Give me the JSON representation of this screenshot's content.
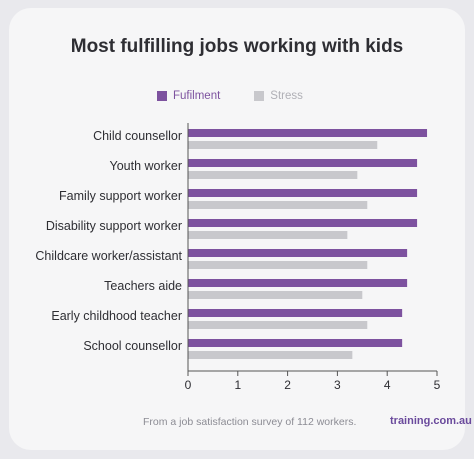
{
  "chart_data": {
    "type": "bar",
    "title": "Most fulfilling jobs working with kids",
    "categories": [
      "Child counsellor",
      "Youth worker",
      "Family support worker",
      "Disability support worker",
      "Childcare worker/assistant",
      "Teachers aide",
      "Early childhood teacher",
      "School counsellor"
    ],
    "series": [
      {
        "name": "Fufilment",
        "color": "#7d529f",
        "values": [
          4.8,
          4.6,
          4.6,
          4.6,
          4.4,
          4.4,
          4.3,
          4.3
        ]
      },
      {
        "name": "Stress",
        "color": "#c8c8cc",
        "values": [
          3.8,
          3.4,
          3.6,
          3.2,
          3.6,
          3.5,
          3.6,
          3.3
        ]
      }
    ],
    "xlim": [
      0,
      5
    ],
    "xticks": [
      0,
      1,
      2,
      3,
      4,
      5
    ],
    "legend": "top",
    "grid": false
  },
  "footer": {
    "note": "From a job satisfaction survey of 112 workers.",
    "brand": "training.com.au"
  }
}
